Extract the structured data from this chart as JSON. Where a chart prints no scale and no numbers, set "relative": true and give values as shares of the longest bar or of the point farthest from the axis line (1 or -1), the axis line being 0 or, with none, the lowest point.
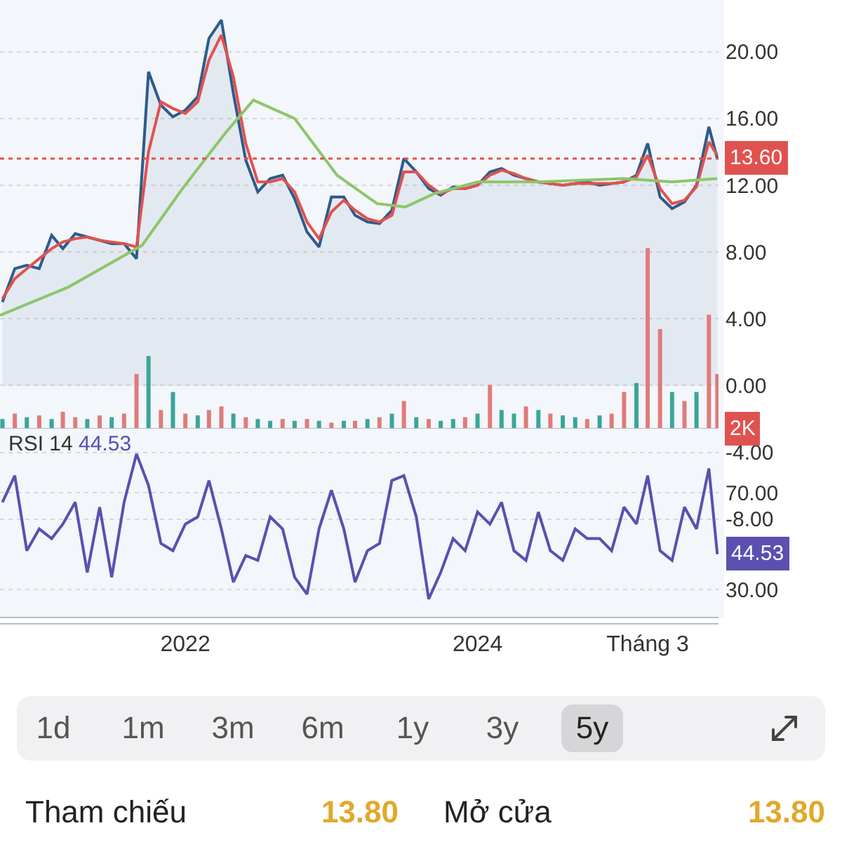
{
  "chart_data": [
    {
      "type": "line",
      "x": [
        "2020-10-01",
        "2020-11-01",
        "2020-12-01",
        "2021-01-01",
        "2021-02-01",
        "2021-03-01",
        "2021-04-01",
        "2021-05-01",
        "2021-06-01",
        "2021-07-01",
        "2021-08-01",
        "2021-09-01",
        "2021-10-01",
        "2021-11-01",
        "2021-12-01",
        "2022-01-01",
        "2022-02-01",
        "2022-03-01",
        "2022-04-01",
        "2022-05-01",
        "2022-06-01",
        "2022-07-01",
        "2022-08-01",
        "2022-09-01",
        "2022-10-01",
        "2022-11-01",
        "2022-12-01",
        "2023-01-01",
        "2023-02-01",
        "2023-03-01",
        "2023-04-01",
        "2023-05-01",
        "2023-06-01",
        "2023-07-01",
        "2023-08-01",
        "2023-09-01",
        "2023-10-01",
        "2023-11-01",
        "2023-12-01",
        "2024-01-01",
        "2024-02-01",
        "2024-03-01",
        "2024-04-01",
        "2024-05-01",
        "2024-06-01",
        "2024-07-01",
        "2024-08-01",
        "2024-09-01",
        "2024-10-01",
        "2024-11-01",
        "2024-12-01",
        "2025-01-01",
        "2025-02-01",
        "2025-03-01",
        "2025-04-01",
        "2025-05-01",
        "2025-06-01",
        "2025-07-01",
        "2025-08-01",
        "2025-08-22"
      ],
      "xlim": [
        "2020-09-25",
        "2025-08-25"
      ],
      "ylim": [
        -13.9,
        23.1
      ],
      "yticks": [
        {
          "value": 20,
          "label": "20.00"
        },
        {
          "value": 16,
          "label": "16.00"
        },
        {
          "value": 12,
          "label": "12.00"
        },
        {
          "value": 8,
          "label": "8.00"
        },
        {
          "value": 4,
          "label": "4.00"
        },
        {
          "value": 0,
          "label": "0.00"
        },
        {
          "value": -4,
          "label": "-4.00"
        },
        {
          "value": -8,
          "label": "-8.00"
        }
      ],
      "xticks": [
        {
          "value": "2022-01-01",
          "label": null
        },
        {
          "value": "2024-01-01",
          "label": null
        },
        {
          "value": "2025-03-01",
          "label": null
        }
      ],
      "grid": "y",
      "tick_labels": "y",
      "marker": "none",
      "line_style": "solid",
      "series": [
        {
          "type": "area",
          "color": "#2c5b8c",
          "values": [
            5.0,
            7.0,
            7.2,
            7.0,
            9.0,
            8.2,
            9.1,
            8.9,
            8.7,
            8.5,
            8.5,
            7.6,
            18.8,
            16.8,
            16.1,
            16.5,
            17.3,
            20.8,
            21.9,
            17.5,
            13.5,
            11.6,
            12.4,
            12.6,
            11.2,
            9.2,
            8.3,
            11.3,
            11.3,
            10.2,
            9.8,
            9.7,
            10.5,
            13.6,
            12.8,
            11.8,
            11.4,
            11.9,
            11.8,
            12.0,
            12.8,
            13.0,
            12.6,
            12.4,
            12.2,
            12.1,
            12.0,
            12.1,
            12.2,
            12.0,
            12.1,
            12.2,
            12.6,
            14.5,
            11.3,
            10.6,
            11.0,
            12.0,
            15.5,
            13.6
          ]
        },
        {
          "color": "#e0524f",
          "values": [
            5.2,
            6.4,
            7.0,
            7.6,
            8.2,
            8.6,
            8.8,
            8.9,
            8.7,
            8.6,
            8.5,
            8.3,
            14.0,
            17.0,
            16.6,
            16.3,
            17.0,
            19.5,
            21.0,
            18.5,
            14.5,
            12.2,
            12.2,
            12.4,
            11.6,
            9.8,
            8.8,
            10.4,
            11.1,
            10.5,
            10.0,
            9.8,
            10.2,
            12.8,
            12.8,
            12.0,
            11.5,
            11.8,
            11.8,
            12.0,
            12.6,
            12.9,
            12.7,
            12.4,
            12.2,
            12.1,
            12.0,
            12.1,
            12.1,
            12.1,
            12.1,
            12.2,
            12.5,
            13.8,
            11.8,
            10.9,
            11.1,
            11.9,
            14.6,
            13.8
          ]
        },
        {
          "color": "#8cc66b",
          "x": [
            "2020-09-25",
            "2021-03-15",
            "2021-09-15",
            "2021-12-25",
            "2022-04-10",
            "2022-06-20",
            "2022-10-01",
            "2023-01-15",
            "2023-04-25",
            "2023-07-05",
            "2023-09-15",
            "2024-01-01",
            "2024-06-01",
            "2025-01-01",
            "2025-05-01",
            "2025-08-22"
          ],
          "values": [
            4.2,
            5.9,
            8.4,
            11.8,
            15.1,
            17.1,
            16.0,
            12.6,
            10.9,
            10.7,
            11.5,
            12.2,
            12.2,
            12.4,
            12.2,
            12.4
          ]
        }
      ],
      "ref_lines": [
        {
          "axis": "y",
          "value": 13.6,
          "label": "13.60",
          "color": "#e0524f",
          "line_style": "dotted"
        }
      ]
    },
    {
      "type": "bar",
      "relative": true,
      "tick_labels": false,
      "xlim": [
        "2020-09-25",
        "2025-08-25"
      ],
      "x": [
        "2020-10-01",
        "2020-11-01",
        "2020-12-01",
        "2021-01-01",
        "2021-02-01",
        "2021-03-01",
        "2021-04-01",
        "2021-05-01",
        "2021-06-01",
        "2021-07-01",
        "2021-08-01",
        "2021-09-01",
        "2021-10-01",
        "2021-11-01",
        "2021-12-01",
        "2022-01-01",
        "2022-02-01",
        "2022-03-01",
        "2022-04-01",
        "2022-05-01",
        "2022-06-01",
        "2022-07-01",
        "2022-08-01",
        "2022-09-01",
        "2022-10-01",
        "2022-11-01",
        "2022-12-01",
        "2023-01-01",
        "2023-02-01",
        "2023-03-01",
        "2023-04-01",
        "2023-05-01",
        "2023-06-01",
        "2023-07-01",
        "2023-08-01",
        "2023-09-01",
        "2023-10-01",
        "2023-11-01",
        "2023-12-01",
        "2024-01-01",
        "2024-02-01",
        "2024-03-01",
        "2024-04-01",
        "2024-05-01",
        "2024-06-01",
        "2024-07-01",
        "2024-08-01",
        "2024-09-01",
        "2024-10-01",
        "2024-11-01",
        "2024-12-01",
        "2025-01-01",
        "2025-02-01",
        "2025-03-01",
        "2025-04-01",
        "2025-05-01",
        "2025-06-01",
        "2025-07-01",
        "2025-08-01",
        "2025-08-22"
      ],
      "values": [
        0.05,
        0.08,
        0.06,
        0.07,
        0.05,
        0.09,
        0.06,
        0.05,
        0.07,
        0.06,
        0.08,
        0.3,
        0.4,
        0.1,
        0.2,
        0.08,
        0.07,
        0.1,
        0.12,
        0.08,
        0.06,
        0.05,
        0.04,
        0.05,
        0.04,
        0.05,
        0.04,
        0.03,
        0.04,
        0.04,
        0.05,
        0.06,
        0.08,
        0.15,
        0.06,
        0.05,
        0.04,
        0.05,
        0.06,
        0.08,
        0.24,
        0.1,
        0.08,
        0.12,
        0.1,
        0.08,
        0.07,
        0.06,
        0.05,
        0.07,
        0.08,
        0.2,
        0.25,
        1.0,
        0.55,
        0.2,
        0.15,
        0.2,
        0.63,
        0.3
      ],
      "colors": [
        "#3aa59a",
        "#e07b7b",
        "#3aa59a",
        "#e07b7b",
        "#3aa59a",
        "#e07b7b",
        "#e07b7b",
        "#3aa59a",
        "#e07b7b",
        "#3aa59a",
        "#e07b7b",
        "#e07b7b",
        "#3aa59a",
        "#e07b7b",
        "#3aa59a",
        "#e07b7b",
        "#3aa59a",
        "#e07b7b",
        "#e07b7b",
        "#3aa59a",
        "#e07b7b",
        "#3aa59a",
        "#3aa59a",
        "#e07b7b",
        "#3aa59a",
        "#e07b7b",
        "#3aa59a",
        "#e07b7b",
        "#3aa59a",
        "#e07b7b",
        "#3aa59a",
        "#e07b7b",
        "#3aa59a",
        "#e07b7b",
        "#3aa59a",
        "#e07b7b",
        "#3aa59a",
        "#3aa59a",
        "#e07b7b",
        "#3aa59a",
        "#e07b7b",
        "#3aa59a",
        "#3aa59a",
        "#e07b7b",
        "#3aa59a",
        "#e07b7b",
        "#3aa59a",
        "#3aa59a",
        "#e07b7b",
        "#3aa59a",
        "#e07b7b",
        "#e07b7b",
        "#3aa59a",
        "#e07b7b",
        "#e07b7b",
        "#3aa59a",
        "#e07b7b",
        "#3aa59a",
        "#e07b7b",
        "#e07b7b"
      ],
      "annotations": [
        "2K"
      ]
    },
    {
      "type": "line",
      "title": "RSI 14",
      "xlim": [
        "2020-09-25",
        "2025-08-25"
      ],
      "xticks": [
        {
          "value": "2022-01-01",
          "label": "2022"
        },
        {
          "value": "2024-01-01",
          "label": "2024"
        },
        {
          "value": "2025-03-01",
          "label": "Tháng 3"
        }
      ],
      "ylim": [
        18.4,
        96.7
      ],
      "yticks": [
        {
          "value": 70,
          "label": "70.00"
        },
        {
          "value": 30,
          "label": "30.00"
        }
      ],
      "grid": "y",
      "x": [
        "2020-10-01",
        "2020-11-01",
        "2020-12-01",
        "2021-01-01",
        "2021-02-01",
        "2021-03-01",
        "2021-04-01",
        "2021-05-01",
        "2021-06-01",
        "2021-07-01",
        "2021-08-01",
        "2021-09-01",
        "2021-10-01",
        "2021-11-01",
        "2021-12-01",
        "2022-01-01",
        "2022-02-01",
        "2022-03-01",
        "2022-04-01",
        "2022-05-01",
        "2022-06-01",
        "2022-07-01",
        "2022-08-01",
        "2022-09-01",
        "2022-10-01",
        "2022-11-01",
        "2022-12-01",
        "2023-01-01",
        "2023-02-01",
        "2023-03-01",
        "2023-04-01",
        "2023-05-01",
        "2023-06-01",
        "2023-07-01",
        "2023-08-01",
        "2023-09-01",
        "2023-10-01",
        "2023-11-01",
        "2023-12-01",
        "2024-01-01",
        "2024-02-01",
        "2024-03-01",
        "2024-04-01",
        "2024-05-01",
        "2024-06-01",
        "2024-07-01",
        "2024-08-01",
        "2024-09-01",
        "2024-10-01",
        "2024-11-01",
        "2024-12-01",
        "2025-01-01",
        "2025-02-01",
        "2025-03-01",
        "2025-04-01",
        "2025-05-01",
        "2025-06-01",
        "2025-07-01",
        "2025-08-01",
        "2025-08-22"
      ],
      "series": [
        {
          "color": "#5b4fb0",
          "values": [
            66,
            77,
            46,
            55,
            51,
            57,
            66,
            37,
            64,
            35,
            66,
            86,
            73,
            49,
            46,
            57,
            60,
            75,
            55,
            33,
            44,
            42,
            60,
            55,
            35,
            28,
            55,
            71,
            55,
            33,
            46,
            49,
            75,
            77,
            60,
            26,
            37,
            51,
            46,
            62,
            57,
            66,
            46,
            42,
            62,
            46,
            42,
            55,
            51,
            51,
            46,
            64,
            57,
            77,
            46,
            42,
            64,
            55,
            80,
            44.53
          ]
        }
      ],
      "annotations": [
        "44.53",
        {
          "text": "44.53",
          "x": "2025-08-22",
          "y": 44.53
        }
      ]
    },
    {
      "type": "other",
      "annotations": [
        "1d",
        "1m",
        "3m",
        "6m",
        "1y",
        "3y",
        "5y",
        "Tham chiếu",
        "13.80",
        "Mở cửa",
        "13.80"
      ]
    }
  ]
}
